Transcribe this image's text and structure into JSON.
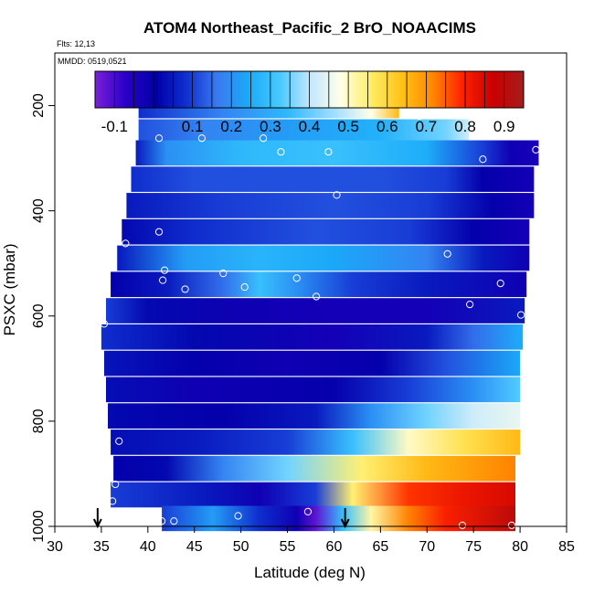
{
  "chart_data": {
    "type": "heatmap",
    "title": "ATOM4 Northeast_Pacific_2 BrO_NOAACIMS",
    "flights_text": "Flts: 12,13",
    "dates_text": "MMDD: 0519,0521",
    "xlabel": "Latitude (deg N)",
    "ylabel": "PSXC (mbar)",
    "xlim": [
      30,
      85
    ],
    "ylim": [
      1000,
      100
    ],
    "y_reversed": true,
    "x_ticks": [
      30,
      35,
      40,
      45,
      50,
      55,
      60,
      65,
      70,
      75,
      80,
      85
    ],
    "y_ticks": [
      200,
      400,
      600,
      800,
      1000
    ],
    "colorbar": {
      "min": -0.15,
      "max": 0.95,
      "tick_values": [
        -0.1,
        0.1,
        0.2,
        0.3,
        0.4,
        0.5,
        0.6,
        0.7,
        0.8,
        0.9
      ],
      "tick_labels": [
        "-0.1",
        "0.1",
        "0.2",
        "0.3",
        "0.4",
        "0.5",
        "0.6",
        "0.7",
        "0.8",
        "0.9"
      ],
      "colors": [
        "#7B1FD8",
        "#2A00C8",
        "#0000A8",
        "#1030D0",
        "#3A7AF0",
        "#1AAAF8",
        "#44C8FF",
        "#BFE6FF",
        "#FFFFE8",
        "#FFEE66",
        "#FFC21A",
        "#FF8A00",
        "#FF2200",
        "#C80000",
        "#A61C1C"
      ]
    },
    "grid": false,
    "legend": "colorbar-top",
    "bands": [
      {
        "p": 200,
        "lat_start": 39.0,
        "lat_end": 67.0,
        "stops": [
          [
            39,
            0.08
          ],
          [
            48,
            0.18
          ],
          [
            55,
            0.28
          ],
          [
            60,
            0.38
          ],
          [
            64,
            0.48
          ],
          [
            67,
            0.65
          ]
        ]
      },
      {
        "p": 250,
        "lat_start": 39.0,
        "lat_end": 74.5,
        "stops": [
          [
            39,
            0.12
          ],
          [
            46,
            0.18
          ],
          [
            55,
            0.22
          ],
          [
            65,
            0.26
          ],
          [
            72,
            0.35
          ],
          [
            74.5,
            0.42
          ]
        ]
      },
      {
        "p": 290,
        "lat_start": 38.7,
        "lat_end": 82.0,
        "stops": [
          [
            38.7,
            0.05
          ],
          [
            42,
            0.2
          ],
          [
            50,
            0.28
          ],
          [
            60,
            0.3
          ],
          [
            70,
            0.25
          ],
          [
            76,
            0.1
          ],
          [
            79,
            -0.02
          ],
          [
            82,
            -0.04
          ]
        ]
      },
      {
        "p": 340,
        "lat_start": 38.2,
        "lat_end": 81.5,
        "stops": [
          [
            38.2,
            0.08
          ],
          [
            45,
            0.12
          ],
          [
            55,
            0.12
          ],
          [
            65,
            0.12
          ],
          [
            72,
            0.1
          ],
          [
            76,
            0.0
          ],
          [
            81.5,
            -0.03
          ]
        ]
      },
      {
        "p": 390,
        "lat_start": 37.7,
        "lat_end": 81.5,
        "stops": [
          [
            37.7,
            0.05
          ],
          [
            48,
            0.1
          ],
          [
            60,
            0.12
          ],
          [
            70,
            0.1
          ],
          [
            77,
            0.0
          ],
          [
            81.5,
            -0.03
          ]
        ]
      },
      {
        "p": 440,
        "lat_start": 37.2,
        "lat_end": 81.0,
        "stops": [
          [
            37.2,
            0.02
          ],
          [
            45,
            0.08
          ],
          [
            58,
            0.12
          ],
          [
            68,
            0.1
          ],
          [
            75,
            0.0
          ],
          [
            81,
            -0.03
          ]
        ]
      },
      {
        "p": 490,
        "lat_start": 36.7,
        "lat_end": 81.0,
        "stops": [
          [
            36.7,
            0.05
          ],
          [
            44,
            0.22
          ],
          [
            52,
            0.27
          ],
          [
            60,
            0.24
          ],
          [
            70,
            0.18
          ],
          [
            76,
            0.05
          ],
          [
            81,
            -0.02
          ]
        ]
      },
      {
        "p": 540,
        "lat_start": 36.0,
        "lat_end": 80.7,
        "stops": [
          [
            36,
            0.0
          ],
          [
            42,
            0.05
          ],
          [
            48,
            0.15
          ],
          [
            52,
            0.3
          ],
          [
            56,
            0.2
          ],
          [
            62,
            0.1
          ],
          [
            70,
            0.05
          ],
          [
            80.7,
            -0.02
          ]
        ]
      },
      {
        "p": 590,
        "lat_start": 35.5,
        "lat_end": 80.5,
        "stops": [
          [
            35.5,
            0.1
          ],
          [
            40,
            0.02
          ],
          [
            50,
            -0.02
          ],
          [
            60,
            -0.03
          ],
          [
            70,
            -0.03
          ],
          [
            80.5,
            0.05
          ]
        ]
      },
      {
        "p": 640,
        "lat_start": 35.0,
        "lat_end": 80.3,
        "stops": [
          [
            35,
            0.08
          ],
          [
            45,
            0.02
          ],
          [
            60,
            -0.03
          ],
          [
            70,
            0.05
          ],
          [
            75,
            0.15
          ],
          [
            80.3,
            0.25
          ]
        ]
      },
      {
        "p": 690,
        "lat_start": 35.3,
        "lat_end": 80.0,
        "stops": [
          [
            35.3,
            0.04
          ],
          [
            45,
            0.0
          ],
          [
            55,
            -0.02
          ],
          [
            65,
            0.0
          ],
          [
            72,
            0.12
          ],
          [
            80,
            0.24
          ]
        ]
      },
      {
        "p": 740,
        "lat_start": 35.5,
        "lat_end": 80.0,
        "stops": [
          [
            35.5,
            0.03
          ],
          [
            45,
            -0.02
          ],
          [
            60,
            0.0
          ],
          [
            68,
            0.1
          ],
          [
            75,
            0.2
          ],
          [
            80,
            0.33
          ]
        ]
      },
      {
        "p": 790,
        "lat_start": 35.7,
        "lat_end": 80.0,
        "stops": [
          [
            35.7,
            0.02
          ],
          [
            48,
            0.0
          ],
          [
            58,
            0.05
          ],
          [
            64,
            0.2
          ],
          [
            70,
            0.35
          ],
          [
            75,
            0.42
          ],
          [
            80,
            0.45
          ]
        ]
      },
      {
        "p": 840,
        "lat_start": 36.0,
        "lat_end": 80.0,
        "stops": [
          [
            36,
            0.03
          ],
          [
            45,
            0.05
          ],
          [
            55,
            0.1
          ],
          [
            62,
            0.3
          ],
          [
            68,
            0.5
          ],
          [
            74,
            0.58
          ],
          [
            80,
            0.65
          ]
        ]
      },
      {
        "p": 890,
        "lat_start": 36.3,
        "lat_end": 79.5,
        "stops": [
          [
            36.3,
            0.0
          ],
          [
            42,
            0.02
          ],
          [
            48,
            0.18
          ],
          [
            55,
            0.35
          ],
          [
            63,
            0.55
          ],
          [
            70,
            0.65
          ],
          [
            79.5,
            0.72
          ]
        ]
      },
      {
        "p": 940,
        "lat_start": 36.0,
        "lat_end": 79.5,
        "stops": [
          [
            36,
            0.1
          ],
          [
            46,
            0.05
          ],
          [
            52,
            -0.02
          ],
          [
            58,
            0.1
          ],
          [
            62,
            0.55
          ],
          [
            68,
            0.78
          ],
          [
            74,
            0.82
          ],
          [
            79.5,
            0.85
          ]
        ]
      },
      {
        "p": 985,
        "lat_start": 41.5,
        "lat_end": 79.5,
        "stops": [
          [
            41.5,
            0.1
          ],
          [
            47,
            0.22
          ],
          [
            52,
            0.08
          ],
          [
            56,
            -0.02
          ],
          [
            58,
            -0.12
          ],
          [
            61,
            0.3
          ],
          [
            64,
            0.52
          ],
          [
            68,
            0.72
          ],
          [
            72,
            0.8
          ],
          [
            79.5,
            0.9
          ]
        ]
      }
    ],
    "band_half_height": 24,
    "points": [
      {
        "lat": 39.5,
        "p": 195
      },
      {
        "lat": 66.7,
        "p": 190
      },
      {
        "lat": 69.2,
        "p": 220
      },
      {
        "lat": 41.2,
        "p": 262
      },
      {
        "lat": 45.8,
        "p": 262
      },
      {
        "lat": 52.4,
        "p": 262
      },
      {
        "lat": 54.3,
        "p": 288
      },
      {
        "lat": 59.4,
        "p": 288
      },
      {
        "lat": 76.0,
        "p": 302
      },
      {
        "lat": 81.7,
        "p": 284
      },
      {
        "lat": 60.3,
        "p": 370
      },
      {
        "lat": 41.2,
        "p": 440
      },
      {
        "lat": 37.6,
        "p": 462
      },
      {
        "lat": 72.2,
        "p": 482
      },
      {
        "lat": 41.8,
        "p": 513
      },
      {
        "lat": 41.6,
        "p": 532
      },
      {
        "lat": 48.1,
        "p": 519
      },
      {
        "lat": 56.0,
        "p": 528
      },
      {
        "lat": 44.0,
        "p": 549
      },
      {
        "lat": 50.4,
        "p": 545
      },
      {
        "lat": 77.9,
        "p": 538
      },
      {
        "lat": 58.1,
        "p": 563
      },
      {
        "lat": 74.6,
        "p": 578
      },
      {
        "lat": 80.1,
        "p": 598
      },
      {
        "lat": 35.3,
        "p": 615
      },
      {
        "lat": 36.9,
        "p": 838
      },
      {
        "lat": 36.5,
        "p": 920
      },
      {
        "lat": 36.2,
        "p": 952
      },
      {
        "lat": 41.5,
        "p": 990
      },
      {
        "lat": 42.8,
        "p": 990
      },
      {
        "lat": 49.7,
        "p": 980
      },
      {
        "lat": 57.2,
        "p": 972
      },
      {
        "lat": 73.8,
        "p": 998
      },
      {
        "lat": 79.1,
        "p": 998
      }
    ],
    "arrows": [
      {
        "lat": 34.6
      },
      {
        "lat": 61.2
      }
    ]
  }
}
